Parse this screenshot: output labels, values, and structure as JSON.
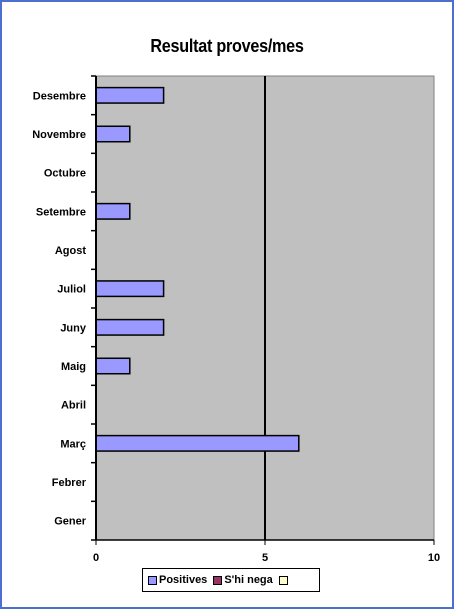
{
  "chart_data": {
    "type": "bar",
    "orientation": "horizontal",
    "title": "Resultat proves/mes",
    "categories": [
      "Gener",
      "Febrer",
      "Març",
      "Abril",
      "Maig",
      "Juny",
      "Juliol",
      "Agost",
      "Setembre",
      "Octubre",
      "Novembre",
      "Desembre"
    ],
    "series": [
      {
        "name": "Positives",
        "color": "#9999ff",
        "values": [
          0,
          0,
          6,
          0,
          1,
          2,
          2,
          0,
          1,
          0,
          1,
          2
        ]
      },
      {
        "name": "S'hi nega",
        "color": "#993366",
        "values": [
          0,
          0,
          0,
          0,
          0,
          0,
          0,
          0,
          0,
          0,
          0,
          0
        ]
      },
      {
        "name": "",
        "color": "#ffffcc",
        "values": [
          0,
          0,
          0,
          0,
          0,
          0,
          0,
          0,
          0,
          0,
          0,
          0
        ]
      }
    ],
    "xlim": [
      0,
      10
    ],
    "xticks": [
      "0",
      "5",
      "10"
    ],
    "grid": true,
    "legend_position": "bottom",
    "colors": {
      "plot_background": "#c0c0c0",
      "frame_border": "#4d6fd0"
    }
  }
}
